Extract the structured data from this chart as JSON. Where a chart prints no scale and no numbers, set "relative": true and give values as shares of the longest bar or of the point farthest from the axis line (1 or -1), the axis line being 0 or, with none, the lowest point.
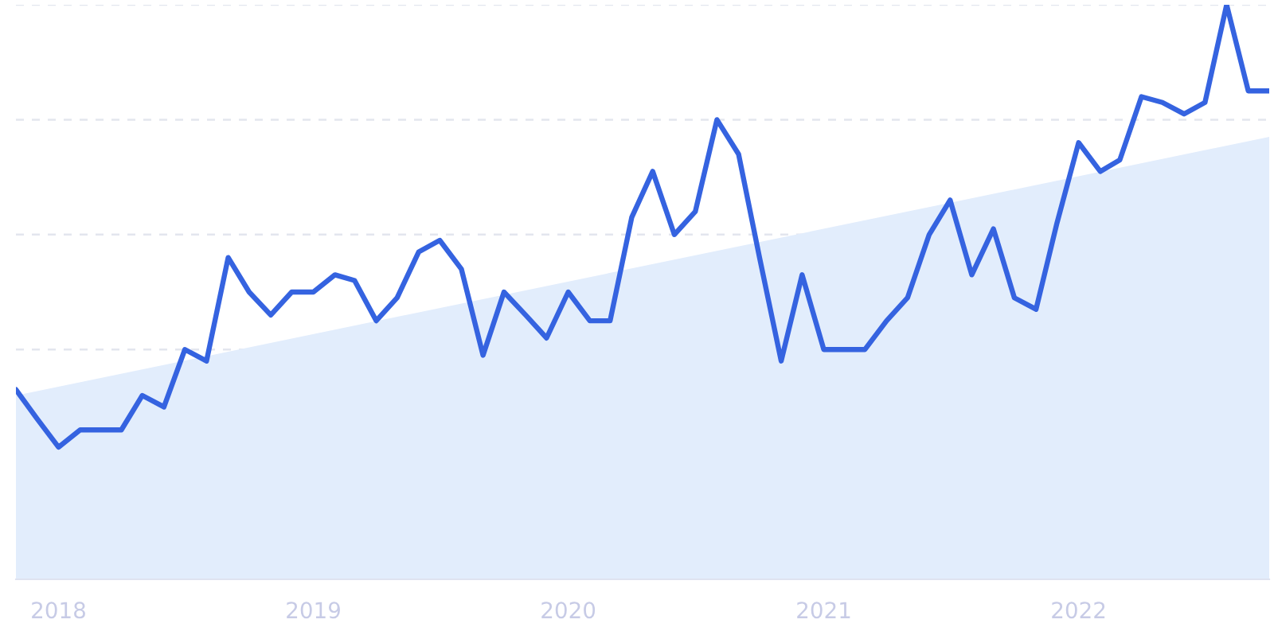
{
  "chart_data": {
    "type": "line",
    "relative": true,
    "grid": "y",
    "legend": false,
    "xlim": [
      "2017-11",
      "2022-10"
    ],
    "xticks": [
      "2018",
      "2019",
      "2020",
      "2021",
      "2022"
    ],
    "series": [
      {
        "type": "area",
        "color": "#e2edfc",
        "x": [
          "2017-11",
          "2022-10"
        ],
        "values": [
          0.32,
          0.77
        ]
      },
      {
        "color": "#3563e0",
        "x": [
          "2017-11",
          "2017-12",
          "2018-01",
          "2018-02",
          "2018-03",
          "2018-04",
          "2018-05",
          "2018-06",
          "2018-07",
          "2018-08",
          "2018-09",
          "2018-10",
          "2018-11",
          "2018-12",
          "2019-01",
          "2019-02",
          "2019-03",
          "2019-04",
          "2019-05",
          "2019-06",
          "2019-07",
          "2019-08",
          "2019-09",
          "2019-10",
          "2019-11",
          "2019-12",
          "2020-01",
          "2020-02",
          "2020-03",
          "2020-04",
          "2020-05",
          "2020-06",
          "2020-07",
          "2020-08",
          "2020-09",
          "2020-10",
          "2020-11",
          "2020-12",
          "2021-01",
          "2021-02",
          "2021-03",
          "2021-04",
          "2021-05",
          "2021-06",
          "2021-07",
          "2021-08",
          "2021-09",
          "2021-10",
          "2021-11",
          "2021-12",
          "2022-01",
          "2022-02",
          "2022-03",
          "2022-04",
          "2022-05",
          "2022-06",
          "2022-07",
          "2022-08",
          "2022-09",
          "2022-10"
        ],
        "values": [
          0.33,
          0.28,
          0.23,
          0.26,
          0.26,
          0.26,
          0.32,
          0.3,
          0.4,
          0.38,
          0.56,
          0.5,
          0.46,
          0.5,
          0.5,
          0.53,
          0.52,
          0.45,
          0.49,
          0.57,
          0.59,
          0.54,
          0.39,
          0.5,
          0.46,
          0.42,
          0.5,
          0.45,
          0.45,
          0.63,
          0.71,
          0.6,
          0.64,
          0.8,
          0.74,
          0.56,
          0.38,
          0.53,
          0.4,
          0.4,
          0.4,
          0.45,
          0.49,
          0.6,
          0.66,
          0.53,
          0.61,
          0.49,
          0.47,
          0.62,
          0.76,
          0.71,
          0.73,
          0.84,
          0.83,
          0.81,
          0.83,
          1.0,
          0.85,
          0.85
        ]
      }
    ]
  }
}
